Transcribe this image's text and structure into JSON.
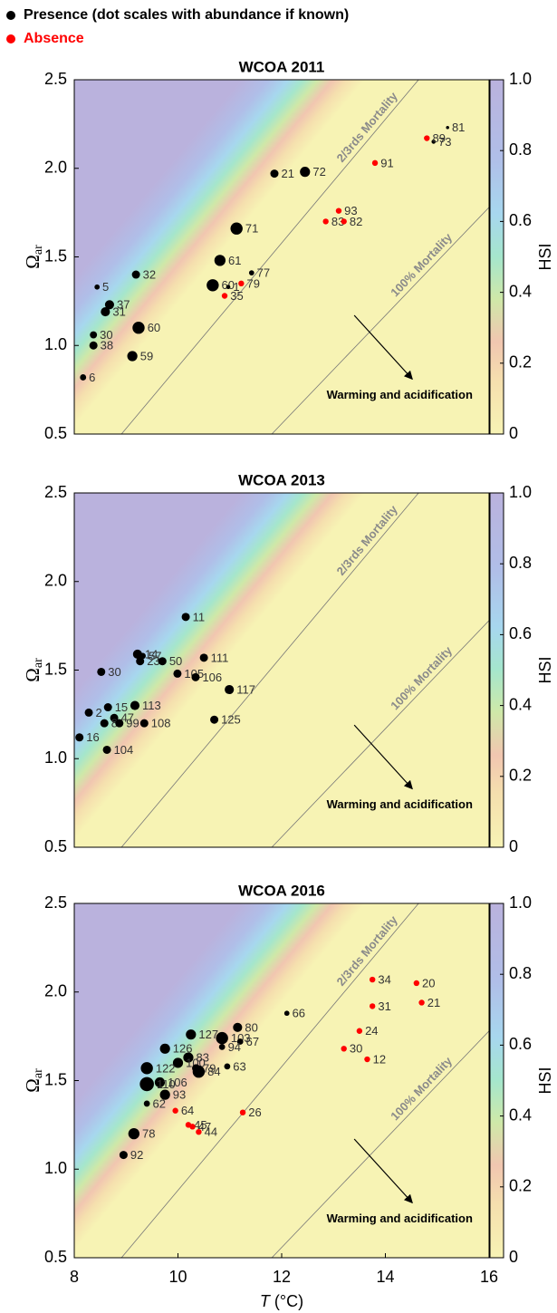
{
  "legend": [
    {
      "label": "Presence (dot scales with abundance if known)",
      "color": "#000000"
    },
    {
      "label": "Absence",
      "color": "#ff0000"
    }
  ],
  "chart_data": [
    {
      "type": "scatter",
      "title": "WCOA 2011",
      "xlim": [
        8,
        16
      ],
      "ylim": [
        0.5,
        2.5
      ],
      "yticks": [
        0.5,
        {
          "value": 1,
          "label": "1.0"
        },
        1.5,
        {
          "value": 2,
          "label": "2.0"
        },
        2.5
      ],
      "y_label": "Ω",
      "y_label_sub": "ar",
      "colorbar": {
        "label": "HSI",
        "lim": [
          0,
          1
        ],
        "ticks": [
          0,
          0.2,
          0.4,
          0.6,
          0.8,
          {
            "value": 1,
            "label": "1.0"
          }
        ]
      },
      "lines": [
        {
          "label": "2/3rds Mortality",
          "x": [
            8.91,
            14.64
          ],
          "y": [
            0.5,
            2.5
          ]
        },
        {
          "label": "100% Mortality",
          "x": [
            11.81,
            16
          ],
          "y": [
            0.5,
            1.78
          ]
        }
      ],
      "annotation": {
        "text": "Warming and acidification",
        "arrow_x": [
          13.4,
          14.52
        ],
        "arrow_y": [
          1.17,
          0.81
        ]
      },
      "series": [
        {
          "color": "#000000",
          "labels": [
            "81",
            "73",
            "21",
            "72",
            "71",
            "61",
            "77",
            "60",
            "1",
            "5",
            "32",
            "37",
            "31",
            "60",
            "30",
            "38",
            "59",
            "6"
          ],
          "x": [
            15.2,
            14.93,
            11.86,
            12.45,
            11.13,
            10.81,
            11.42,
            10.67,
            10.97,
            8.44,
            9.19,
            8.68,
            8.6,
            9.24,
            8.37,
            8.37,
            9.12,
            8.17
          ],
          "values": [
            2.23,
            2.15,
            1.97,
            1.98,
            1.66,
            1.48,
            1.41,
            1.34,
            1.33,
            1.33,
            1.4,
            1.23,
            1.19,
            1.1,
            1.06,
            1.0,
            0.94,
            0.82
          ],
          "sizes": [
            0.5,
            1,
            3,
            4,
            5,
            4.5,
            1.5,
            5,
            1,
            1.5,
            3,
            3.5,
            3.5,
            5,
            2.5,
            3,
            4,
            2
          ]
        },
        {
          "color": "#ff0000",
          "labels": [
            "89",
            "91",
            "93",
            "83",
            "82",
            "79",
            "35"
          ],
          "x": [
            14.8,
            13.8,
            13.1,
            12.85,
            13.2,
            11.22,
            10.9
          ],
          "values": [
            2.17,
            2.03,
            1.76,
            1.7,
            1.7,
            1.35,
            1.28
          ]
        }
      ]
    },
    {
      "type": "scatter",
      "title": "WCOA 2013",
      "xlim": [
        8,
        16
      ],
      "ylim": [
        0.5,
        2.5
      ],
      "yticks": [
        0.5,
        {
          "value": 1,
          "label": "1.0"
        },
        1.5,
        {
          "value": 2,
          "label": "2.0"
        },
        2.5
      ],
      "y_label": "Ω",
      "y_label_sub": "ar",
      "colorbar": {
        "label": "HSI",
        "lim": [
          0,
          1
        ],
        "ticks": [
          0,
          0.2,
          0.4,
          0.6,
          0.8,
          {
            "value": 1,
            "label": "1.0"
          }
        ]
      },
      "lines": [
        {
          "label": "2/3rds Mortality",
          "x": [
            8.91,
            14.64
          ],
          "y": [
            0.5,
            2.5
          ]
        },
        {
          "label": "100% Mortality",
          "x": [
            11.81,
            16
          ],
          "y": [
            0.5,
            1.78
          ]
        }
      ],
      "annotation": {
        "text": "Warming and acidification",
        "arrow_x": [
          13.4,
          14.52
        ],
        "arrow_y": [
          1.19,
          0.83
        ]
      },
      "series": [
        {
          "color": "#000000",
          "labels": [
            "11",
            "14",
            "57",
            "23",
            "50",
            "111",
            "30",
            "105",
            "106",
            "117",
            "113",
            "15",
            "2",
            "47",
            "8",
            "99",
            "108",
            "125",
            "16",
            "104"
          ],
          "x": [
            10.15,
            9.22,
            9.32,
            9.27,
            9.7,
            10.5,
            8.52,
            9.99,
            10.34,
            10.99,
            9.17,
            8.65,
            8.28,
            8.77,
            8.58,
            8.87,
            9.35,
            10.7,
            8.1,
            8.63
          ],
          "values": [
            1.8,
            1.59,
            1.58,
            1.55,
            1.55,
            1.57,
            1.49,
            1.48,
            1.46,
            1.39,
            1.3,
            1.29,
            1.26,
            1.23,
            1.2,
            1.2,
            1.2,
            1.22,
            1.12,
            1.05
          ],
          "sizes": [
            3,
            3.5,
            2,
            3,
            3,
            3,
            3,
            3,
            3,
            3.5,
            3.5,
            3,
            3,
            3,
            3,
            3,
            3,
            3,
            3,
            3
          ]
        }
      ]
    },
    {
      "type": "scatter",
      "title": "WCOA 2016",
      "xlim": [
        8,
        16
      ],
      "ylim": [
        0.5,
        2.5
      ],
      "xticks": [
        8,
        10,
        12,
        14,
        16
      ],
      "yticks": [
        0.5,
        {
          "value": 1,
          "label": "1.0"
        },
        1.5,
        {
          "value": 2,
          "label": "2.0"
        },
        2.5
      ],
      "x_label_var": "T",
      "x_label_unit": "(°C)",
      "y_label": "Ω",
      "y_label_sub": "ar",
      "colorbar": {
        "label": "HSI",
        "lim": [
          0,
          1
        ],
        "ticks": [
          0,
          0.2,
          0.4,
          0.6,
          0.8,
          {
            "value": 1,
            "label": "1.0"
          }
        ]
      },
      "lines": [
        {
          "label": "2/3rds Mortality",
          "x": [
            8.91,
            14.64
          ],
          "y": [
            0.5,
            2.5
          ]
        },
        {
          "label": "100% Mortality",
          "x": [
            11.81,
            16
          ],
          "y": [
            0.5,
            1.78
          ]
        }
      ],
      "annotation": {
        "text": "Warming and acidification",
        "arrow_x": [
          13.4,
          14.52
        ],
        "arrow_y": [
          1.17,
          0.81
        ]
      },
      "series": [
        {
          "color": "#000000",
          "labels": [
            "66",
            "80",
            "127",
            "103",
            "67",
            "94",
            "126",
            "83",
            "100",
            "122",
            "79",
            "84",
            "63",
            "106",
            "110",
            "93",
            "62",
            "78",
            "92"
          ],
          "x": [
            12.1,
            11.15,
            10.25,
            10.85,
            11.2,
            10.85,
            9.75,
            10.2,
            10.0,
            9.4,
            10.35,
            10.4,
            10.95,
            9.65,
            9.4,
            9.75,
            9.4,
            9.15,
            8.95
          ],
          "values": [
            1.88,
            1.8,
            1.76,
            1.74,
            1.72,
            1.69,
            1.68,
            1.63,
            1.6,
            1.57,
            1.57,
            1.55,
            1.58,
            1.49,
            1.48,
            1.42,
            1.37,
            1.2,
            1.08
          ],
          "sizes": [
            1.5,
            3.5,
            4,
            5,
            2,
            2,
            4,
            4,
            4,
            5,
            3,
            5,
            2,
            4,
            6,
            4,
            2,
            4.5,
            3
          ]
        },
        {
          "color": "#ff0000",
          "labels": [
            "34",
            "20",
            "31",
            "21",
            "24",
            "30",
            "12",
            "64",
            "26",
            "45",
            "47",
            "44"
          ],
          "x": [
            13.75,
            14.6,
            13.75,
            14.7,
            13.5,
            13.2,
            13.65,
            9.95,
            11.25,
            10.2,
            10.28,
            10.4
          ],
          "values": [
            2.07,
            2.05,
            1.92,
            1.94,
            1.78,
            1.68,
            1.62,
            1.33,
            1.32,
            1.25,
            1.24,
            1.21
          ]
        }
      ]
    }
  ]
}
